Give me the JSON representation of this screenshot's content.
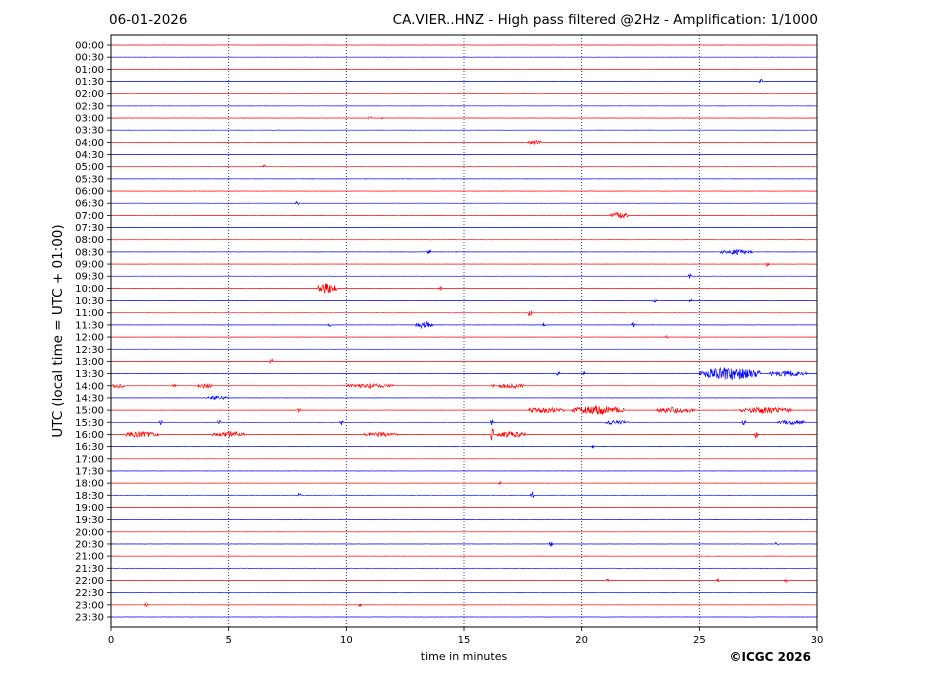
{
  "header": {
    "date": "06-01-2026",
    "title": "CA.VIER..HNZ - High pass filtered @2Hz - Amplification: 1/1000"
  },
  "footer": {
    "copyright": "©ICGC 2026"
  },
  "chart_data": {
    "type": "line",
    "subtype": "helicorder",
    "xlabel": "time in minutes",
    "ylabel": "UTC (local time = UTC + 01:00)",
    "xlim": [
      0,
      30
    ],
    "x_ticks": [
      0,
      5,
      10,
      15,
      20,
      25,
      30
    ],
    "x_tick_labels": [
      "0",
      "5",
      "10",
      "15",
      "20",
      "25",
      "30"
    ],
    "x_grid": "dotted vertical lines at 5, 10, 15, 20, 25 minutes",
    "row_labels": [
      "00:00",
      "00:30",
      "01:00",
      "01:30",
      "02:00",
      "02:30",
      "03:00",
      "03:30",
      "04:00",
      "04:30",
      "05:00",
      "05:30",
      "06:00",
      "06:30",
      "07:00",
      "07:30",
      "08:00",
      "08:30",
      "09:00",
      "09:30",
      "10:00",
      "10:30",
      "11:00",
      "11:30",
      "12:00",
      "12:30",
      "13:00",
      "13:30",
      "14:00",
      "14:30",
      "15:00",
      "15:30",
      "16:00",
      "16:30",
      "17:00",
      "17:30",
      "18:00",
      "18:30",
      "19:00",
      "19:30",
      "20:00",
      "20:30",
      "21:00",
      "21:30",
      "22:00",
      "22:30",
      "23:00",
      "23:30"
    ],
    "colors": {
      "hour_trace": "#ff0000",
      "half_hour_trace": "#0000ff"
    },
    "traces": [
      {
        "row": "01:30",
        "bursts": [
          {
            "x": 27.6,
            "amp": 0.5
          }
        ]
      },
      {
        "row": "03:00",
        "bursts": [
          {
            "x": 11.0,
            "amp": 0.3
          },
          {
            "x": 11.5,
            "amp": 0.25
          }
        ]
      },
      {
        "row": "04:00",
        "bursts": [
          {
            "x": 18.0,
            "amp": 0.35,
            "dur": 0.6
          }
        ]
      },
      {
        "row": "05:00",
        "bursts": [
          {
            "x": 6.5,
            "amp": 0.35
          }
        ]
      },
      {
        "row": "06:30",
        "bursts": [
          {
            "x": 7.9,
            "amp": 0.4
          }
        ]
      },
      {
        "row": "07:00",
        "bursts": [
          {
            "x": 21.6,
            "amp": 0.45,
            "dur": 0.8
          }
        ]
      },
      {
        "row": "08:30",
        "bursts": [
          {
            "x": 13.5,
            "amp": 0.4
          },
          {
            "x": 26.6,
            "amp": 0.4,
            "dur": 1.4
          }
        ]
      },
      {
        "row": "09:00",
        "bursts": [
          {
            "x": 27.9,
            "amp": 0.4
          }
        ]
      },
      {
        "row": "09:30",
        "bursts": [
          {
            "x": 24.6,
            "amp": 0.35
          }
        ]
      },
      {
        "row": "10:00",
        "bursts": [
          {
            "x": 9.2,
            "amp": 0.9,
            "dur": 0.8
          },
          {
            "x": 14.0,
            "amp": 0.3
          }
        ]
      },
      {
        "row": "10:30",
        "bursts": [
          {
            "x": 23.1,
            "amp": 0.35
          },
          {
            "x": 24.6,
            "amp": 0.45
          }
        ]
      },
      {
        "row": "11:00",
        "bursts": [
          {
            "x": 17.8,
            "amp": 0.6
          }
        ]
      },
      {
        "row": "11:30",
        "bursts": [
          {
            "x": 9.3,
            "amp": 0.45
          },
          {
            "x": 13.3,
            "amp": 0.55,
            "dur": 0.8
          },
          {
            "x": 22.2,
            "amp": 0.5
          },
          {
            "x": 18.4,
            "amp": 0.4
          }
        ]
      },
      {
        "row": "12:00",
        "bursts": [
          {
            "x": 23.6,
            "amp": 0.35
          }
        ]
      },
      {
        "row": "12:30",
        "bursts": []
      },
      {
        "row": "13:00",
        "bursts": [
          {
            "x": 6.8,
            "amp": 0.45
          }
        ]
      },
      {
        "row": "13:30",
        "bursts": [
          {
            "x": 19.0,
            "amp": 0.35
          },
          {
            "x": 20.1,
            "amp": 0.35
          },
          {
            "x": 26.3,
            "amp": 1.0,
            "dur": 2.6
          },
          {
            "x": 28.8,
            "amp": 0.5,
            "dur": 1.6
          }
        ]
      },
      {
        "row": "14:00",
        "bursts": [
          {
            "x": 0.3,
            "amp": 0.35,
            "dur": 0.6
          },
          {
            "x": 2.7,
            "amp": 0.3
          },
          {
            "x": 4.0,
            "amp": 0.45,
            "dur": 0.6
          },
          {
            "x": 11.0,
            "amp": 0.35,
            "dur": 2.0
          },
          {
            "x": 16.2,
            "amp": 0.5
          },
          {
            "x": 17.0,
            "amp": 0.4,
            "dur": 1.2
          }
        ]
      },
      {
        "row": "14:30",
        "bursts": [
          {
            "x": 4.5,
            "amp": 0.3,
            "dur": 1.0
          }
        ]
      },
      {
        "row": "15:00",
        "bursts": [
          {
            "x": 8.0,
            "amp": 0.4
          },
          {
            "x": 18.5,
            "amp": 0.45,
            "dur": 1.5
          },
          {
            "x": 20.7,
            "amp": 0.7,
            "dur": 2.2
          },
          {
            "x": 24.0,
            "amp": 0.5,
            "dur": 1.6
          },
          {
            "x": 27.8,
            "amp": 0.5,
            "dur": 2.2
          }
        ]
      },
      {
        "row": "15:30",
        "bursts": [
          {
            "x": 2.1,
            "amp": 0.4
          },
          {
            "x": 4.6,
            "amp": 0.4
          },
          {
            "x": 9.8,
            "amp": 0.45
          },
          {
            "x": 16.2,
            "amp": 0.5
          },
          {
            "x": 21.5,
            "amp": 0.4,
            "dur": 1.0
          },
          {
            "x": 26.9,
            "amp": 0.5
          },
          {
            "x": 28.9,
            "amp": 0.35,
            "dur": 1.2
          }
        ]
      },
      {
        "row": "16:00",
        "bursts": [
          {
            "x": 1.3,
            "amp": 0.5,
            "dur": 1.4
          },
          {
            "x": 5.0,
            "amp": 0.45,
            "dur": 1.4
          },
          {
            "x": 11.5,
            "amp": 0.35,
            "dur": 1.5
          },
          {
            "x": 16.2,
            "amp": 1.0
          },
          {
            "x": 17.0,
            "amp": 0.5,
            "dur": 1.2
          },
          {
            "x": 27.4,
            "amp": 0.7
          }
        ]
      },
      {
        "row": "16:30",
        "bursts": [
          {
            "x": 20.5,
            "amp": 0.3
          }
        ]
      },
      {
        "row": "18:00",
        "bursts": [
          {
            "x": 16.5,
            "amp": 0.3
          }
        ]
      },
      {
        "row": "18:30",
        "bursts": [
          {
            "x": 8.0,
            "amp": 0.35
          },
          {
            "x": 17.9,
            "amp": 0.55
          }
        ]
      },
      {
        "row": "20:30",
        "bursts": [
          {
            "x": 18.7,
            "amp": 0.45
          },
          {
            "x": 28.3,
            "amp": 0.45
          }
        ]
      },
      {
        "row": "22:00",
        "bursts": [
          {
            "x": 21.1,
            "amp": 0.3
          },
          {
            "x": 25.8,
            "amp": 0.3
          },
          {
            "x": 28.7,
            "amp": 0.3
          }
        ]
      },
      {
        "row": "23:00",
        "bursts": [
          {
            "x": 1.5,
            "amp": 0.3
          },
          {
            "x": 10.6,
            "amp": 0.3
          }
        ]
      }
    ]
  }
}
